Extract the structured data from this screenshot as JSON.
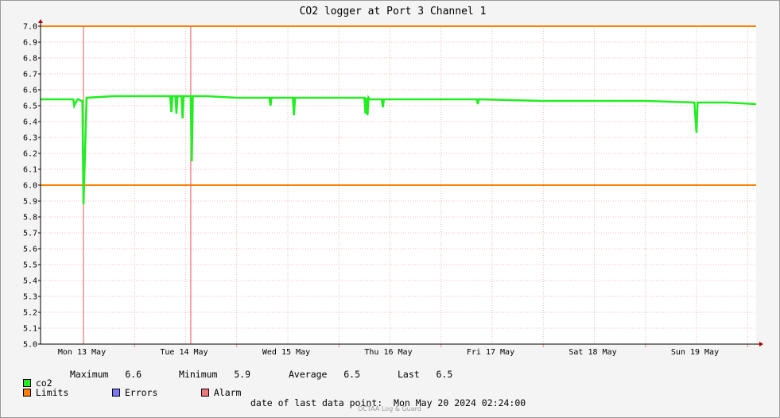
{
  "chart_data": {
    "type": "line",
    "title": "CO2 logger at Port 3 Channel 1",
    "ylim": [
      5.0,
      7.0
    ],
    "yticks": [
      "5.0",
      "5.1",
      "5.2",
      "5.3",
      "5.4",
      "5.5",
      "5.6",
      "5.7",
      "5.8",
      "5.9",
      "6.0",
      "6.1",
      "6.2",
      "6.3",
      "6.4",
      "6.5",
      "6.6",
      "6.7",
      "6.8",
      "6.9",
      "7.0"
    ],
    "x_day_labels": [
      "Mon 13 May",
      "Tue 14 May",
      "Wed 15 May",
      "Thu 16 May",
      "Fri 17 May",
      "Sat 18 May",
      "Sun 19 May"
    ],
    "grid": true,
    "limits": {
      "upper": 7.0,
      "lower": 6.0,
      "color": "#ff7f00"
    },
    "alarm_markers_day": [
      0.0,
      1.05
    ],
    "series": [
      {
        "name": "co2",
        "color": "#22ee22",
        "x_days": [
          -0.42,
          -0.1,
          -0.09,
          -0.06,
          -0.05,
          -0.02,
          -0.01,
          0.0,
          0.03,
          0.3,
          0.85,
          0.86,
          0.87,
          0.9,
          0.91,
          0.92,
          0.96,
          0.97,
          0.98,
          1.05,
          1.06,
          1.07,
          1.2,
          1.5,
          1.82,
          1.83,
          1.84,
          2.05,
          2.06,
          2.07,
          2.5,
          2.75,
          2.76,
          2.77,
          2.78,
          2.79,
          2.8,
          2.92,
          2.93,
          2.94,
          3.5,
          3.85,
          3.86,
          3.87,
          4.5,
          5.0,
          5.5,
          5.98,
          5.99,
          6.0,
          6.01,
          6.02,
          6.3,
          6.6
        ],
        "values": [
          6.54,
          6.54,
          6.5,
          6.54,
          6.54,
          6.53,
          6.53,
          5.88,
          6.55,
          6.56,
          6.56,
          6.46,
          6.56,
          6.56,
          6.45,
          6.56,
          6.56,
          6.42,
          6.56,
          6.56,
          6.15,
          6.56,
          6.56,
          6.55,
          6.55,
          6.5,
          6.55,
          6.55,
          6.44,
          6.55,
          6.55,
          6.55,
          6.45,
          6.55,
          6.44,
          6.55,
          6.54,
          6.54,
          6.49,
          6.54,
          6.54,
          6.54,
          6.51,
          6.54,
          6.53,
          6.53,
          6.53,
          6.52,
          6.42,
          6.33,
          6.52,
          6.52,
          6.52,
          6.51
        ]
      }
    ]
  },
  "legend": {
    "series_label": "co2",
    "maximum_label": "Maximum",
    "maximum_value": "6.6",
    "minimum_label": "Minimum",
    "minimum_value": "5.9",
    "average_label": "Average",
    "average_value": "6.5",
    "last_label": "Last",
    "last_value": "6.5",
    "limits_label": "Limits",
    "errors_label": "Errors",
    "alarm_label": "Alarm",
    "colors": {
      "co2": "#22ee22",
      "limits": "#ff7f00",
      "errors": "#7777ff",
      "alarm": "#ee7777"
    }
  },
  "footer": {
    "last_point_label": "date of last data point:",
    "last_point_value": "Mon May 20 2024 02:24:00",
    "watermark": "OCTAA Log & Guard"
  }
}
